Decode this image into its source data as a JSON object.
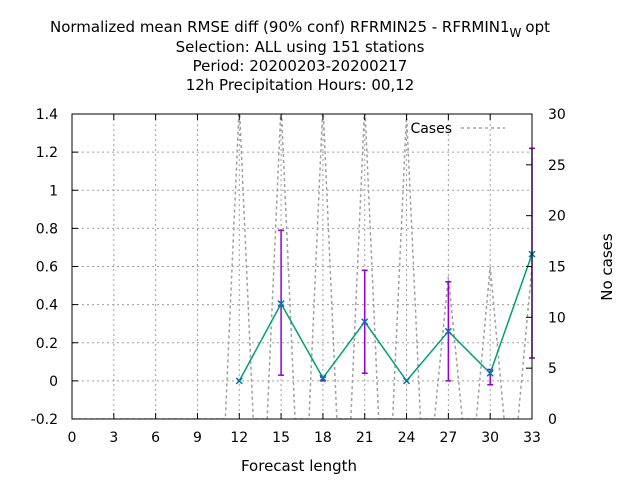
{
  "chart_data": {
    "type": "line",
    "title_lines": [
      "Normalized mean RMSE diff (90% conf) RFRMIN25 - RFRMIN1",
      "Selection: ALL using   151 stations",
      "Period: 20200203-20200217",
      "12h Precipitation   Hours:  00,12"
    ],
    "title_subscript": "W",
    "title_suffix": "opt",
    "xlabel": "Forecast length",
    "ylabel": "",
    "y2label": "No cases",
    "xlim": [
      0,
      33
    ],
    "ylim": [
      -0.2,
      1.4
    ],
    "y2lim": [
      0,
      30
    ],
    "xticks": [
      0,
      3,
      6,
      9,
      12,
      15,
      18,
      21,
      24,
      27,
      30,
      33
    ],
    "yticks": [
      -0.2,
      0,
      0.2,
      0.4,
      0.6,
      0.8,
      1,
      1.2,
      1.4
    ],
    "y2ticks": [
      0,
      5,
      10,
      15,
      20,
      25,
      30
    ],
    "grid": true,
    "legend_position": "top-right",
    "colors": {
      "line": "#009e73",
      "errorbar": "#9400d3",
      "marker": "#0072b2",
      "cases": "#a0a0a0",
      "grid": "#a0a0a0"
    },
    "series": [
      {
        "x": [
          12,
          15,
          18,
          21,
          24,
          27,
          30,
          33
        ],
        "y": [
          0.0,
          0.405,
          0.015,
          0.31,
          0.0,
          0.26,
          0.04,
          0.665
        ],
        "err_low": [
          0.0,
          0.03,
          0.0,
          0.04,
          0.0,
          0.0,
          -0.02,
          0.12
        ],
        "err_high": [
          0.0,
          0.79,
          0.02,
          0.58,
          0.0,
          0.52,
          0.06,
          1.22
        ]
      },
      {
        "name": "Cases",
        "axis": "y2",
        "x": [
          0,
          11,
          12,
          13,
          14,
          15,
          16,
          17,
          18,
          19,
          20,
          21,
          22,
          23,
          24,
          25,
          26,
          27,
          28,
          29,
          30,
          31,
          32,
          33
        ],
        "y": [
          0,
          0,
          31,
          0,
          0,
          31,
          0,
          0,
          31,
          0,
          0,
          31,
          0,
          0,
          30,
          0,
          0,
          14,
          0,
          0,
          15,
          0,
          0,
          15
        ]
      }
    ]
  }
}
